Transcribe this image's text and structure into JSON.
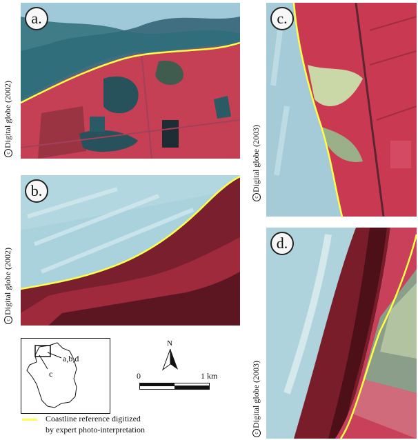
{
  "panels": {
    "a": {
      "label": "a.",
      "credit": "Digital globe (2002)"
    },
    "b": {
      "label": "b.",
      "credit": "Digital globe (2002)"
    },
    "c": {
      "label": "c.",
      "credit": "Digital globe (2003)"
    },
    "d": {
      "label": "d.",
      "credit": "Digital globe (2003)"
    }
  },
  "inset_map": {
    "label_abd": "a,b,d",
    "label_c": "c"
  },
  "north_arrow": {
    "label": "N"
  },
  "scale_bar": {
    "start": "0",
    "end": "1 km"
  },
  "legend": {
    "line1": "Coastline reference digitized",
    "line2": "by expert photo-interpretation",
    "line_color": "#ffff4a"
  },
  "colors": {
    "sea": "#a9d2df",
    "vegetation": "#c93a52",
    "water_body": "#2d5964",
    "coastline": "#ffff4a"
  }
}
